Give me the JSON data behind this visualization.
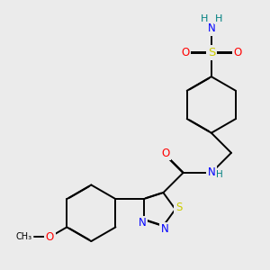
{
  "bg_color": "#ebebeb",
  "atom_colors": {
    "C": "#000000",
    "N": "#0000ff",
    "O": "#ff0000",
    "S": "#cccc00",
    "H": "#008080"
  },
  "bond_lw": 1.4,
  "double_sep": 0.008,
  "font_size": 8.5
}
